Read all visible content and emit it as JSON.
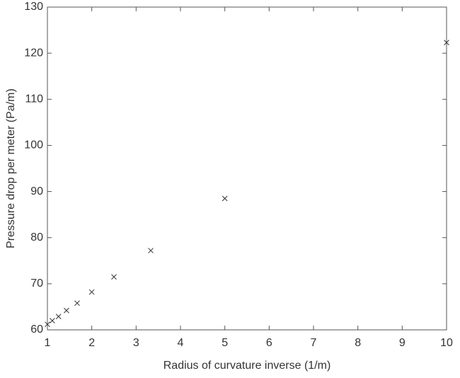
{
  "chart_data": {
    "type": "scatter",
    "x_label": "Radius of curvature inverse (1/m)",
    "y_label": "Pressure drop per meter (Pa/m)",
    "x": [
      1,
      1.11,
      1.25,
      1.43,
      1.67,
      2,
      2.5,
      3.33,
      5,
      10
    ],
    "values": [
      61.2,
      62.0,
      62.9,
      64.2,
      65.8,
      68.2,
      71.5,
      77.2,
      88.5,
      122.3
    ],
    "color": "#333333",
    "xlim": [
      1,
      10
    ],
    "xticks": [
      1,
      2,
      3,
      4,
      5,
      6,
      7,
      8,
      9,
      10
    ],
    "ylim": [
      60,
      130
    ],
    "yticks": [
      60,
      70,
      80,
      90,
      100,
      110,
      120,
      130
    ],
    "grid": false
  }
}
